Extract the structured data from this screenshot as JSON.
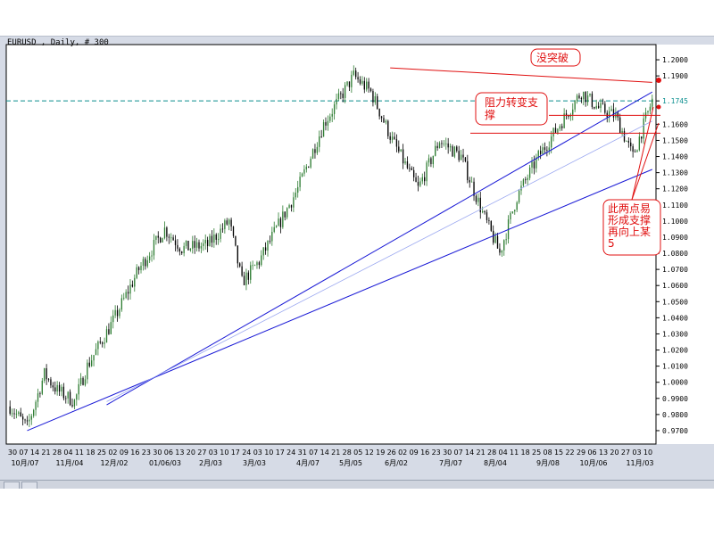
{
  "window": {
    "title": "EURUSD , Daily, # 300"
  },
  "colors": {
    "background": "#ffffff",
    "panel": "#d6dbe6",
    "bull_candle": "#2e7d32",
    "bear_candle": "#000000",
    "trendline": "#1a1ad6",
    "trendline_light": "#9aa7f0",
    "annotation": "#e01010",
    "price_line": "#0b8f8f"
  },
  "chart_data": {
    "type": "candlestick",
    "title": "EURUSD , Daily, # 300",
    "symbol": "EURUSD",
    "timeframe": "Daily",
    "bars": 300,
    "ylim": [
      0.965,
      1.205
    ],
    "y_ticks": [
      "1.2000",
      "1.1900",
      "1.1745",
      "1.1600",
      "1.1500",
      "1.1400",
      "1.1300",
      "1.1200",
      "1.1100",
      "1.1000",
      "1.0900",
      "1.0800",
      "1.0700",
      "1.0600",
      "1.0500",
      "1.0400",
      "1.0300",
      "1.0200",
      "1.0100",
      "1.0000",
      "0.9900",
      "0.9800",
      "0.9700"
    ],
    "x_day_labels": [
      "30",
      "07",
      "14",
      "21",
      "28",
      "04",
      "11",
      "18",
      "25",
      "02",
      "09",
      "16",
      "23",
      "30",
      "06",
      "13",
      "20",
      "27",
      "03",
      "10",
      "17",
      "24",
      "03",
      "10",
      "17",
      "24",
      "31",
      "07",
      "14",
      "21",
      "28",
      "05",
      "12",
      "19",
      "26",
      "02",
      "09",
      "16",
      "23",
      "30",
      "07",
      "14",
      "21",
      "28",
      "04",
      "11",
      "18",
      "25",
      "08",
      "15",
      "22",
      "29",
      "06",
      "13",
      "20",
      "27",
      "03",
      "10"
    ],
    "x_month_labels": [
      "10月/07",
      "11月/04",
      "12月/02",
      "01/06/03",
      "2月/03",
      "3月/03",
      "4月/07",
      "5月/05",
      "6月/02",
      "7月/07",
      "8月/04",
      "9月/08",
      "10月/06",
      "11月/03"
    ],
    "current_price": "1.1745",
    "anchors": [
      {
        "i": 0,
        "v": 0.985
      },
      {
        "i": 8,
        "v": 0.972
      },
      {
        "i": 16,
        "v": 1.005
      },
      {
        "i": 22,
        "v": 0.995
      },
      {
        "i": 30,
        "v": 0.988
      },
      {
        "i": 36,
        "v": 1.01
      },
      {
        "i": 48,
        "v": 1.038
      },
      {
        "i": 60,
        "v": 1.07
      },
      {
        "i": 72,
        "v": 1.095
      },
      {
        "i": 80,
        "v": 1.083
      },
      {
        "i": 92,
        "v": 1.085
      },
      {
        "i": 102,
        "v": 1.1
      },
      {
        "i": 108,
        "v": 1.062
      },
      {
        "i": 116,
        "v": 1.075
      },
      {
        "i": 124,
        "v": 1.095
      },
      {
        "i": 134,
        "v": 1.12
      },
      {
        "i": 146,
        "v": 1.16
      },
      {
        "i": 160,
        "v": 1.19
      },
      {
        "i": 168,
        "v": 1.18
      },
      {
        "i": 178,
        "v": 1.15
      },
      {
        "i": 190,
        "v": 1.12
      },
      {
        "i": 200,
        "v": 1.15
      },
      {
        "i": 210,
        "v": 1.14
      },
      {
        "i": 220,
        "v": 1.105
      },
      {
        "i": 228,
        "v": 1.08
      },
      {
        "i": 236,
        "v": 1.115
      },
      {
        "i": 246,
        "v": 1.14
      },
      {
        "i": 256,
        "v": 1.16
      },
      {
        "i": 266,
        "v": 1.18
      },
      {
        "i": 274,
        "v": 1.17
      },
      {
        "i": 282,
        "v": 1.165
      },
      {
        "i": 290,
        "v": 1.14
      },
      {
        "i": 299,
        "v": 1.175
      }
    ],
    "levels": [
      {
        "name": "support-upper",
        "v": 1.1545
      },
      {
        "name": "support-lower",
        "v": 1.1655
      }
    ],
    "trendlines": [
      {
        "name": "trendline-lower",
        "from": {
          "i": 8,
          "v": 0.97
        },
        "to": {
          "i": 299,
          "v": 1.132
        }
      },
      {
        "name": "trendline-upper",
        "from": {
          "i": 45,
          "v": 0.986
        },
        "to": {
          "i": 299,
          "v": 1.18
        }
      },
      {
        "name": "trendline-light",
        "from": {
          "i": 45,
          "v": 0.988
        },
        "to": {
          "i": 299,
          "v": 1.162
        }
      },
      {
        "name": "trendline-resistance",
        "from": {
          "i": 177,
          "v": 1.195
        },
        "to": {
          "i": 299,
          "v": 1.186
        }
      }
    ],
    "annotations": [
      {
        "name": "annotation-no-break",
        "text": "没突破"
      },
      {
        "name": "annotation-resistance-support",
        "lines": [
          "阻力转变支",
          "撑"
        ]
      },
      {
        "name": "annotation-two-points",
        "lines": [
          "此两点易",
          "形成支撑",
          "再向上某",
          "5"
        ]
      }
    ]
  }
}
